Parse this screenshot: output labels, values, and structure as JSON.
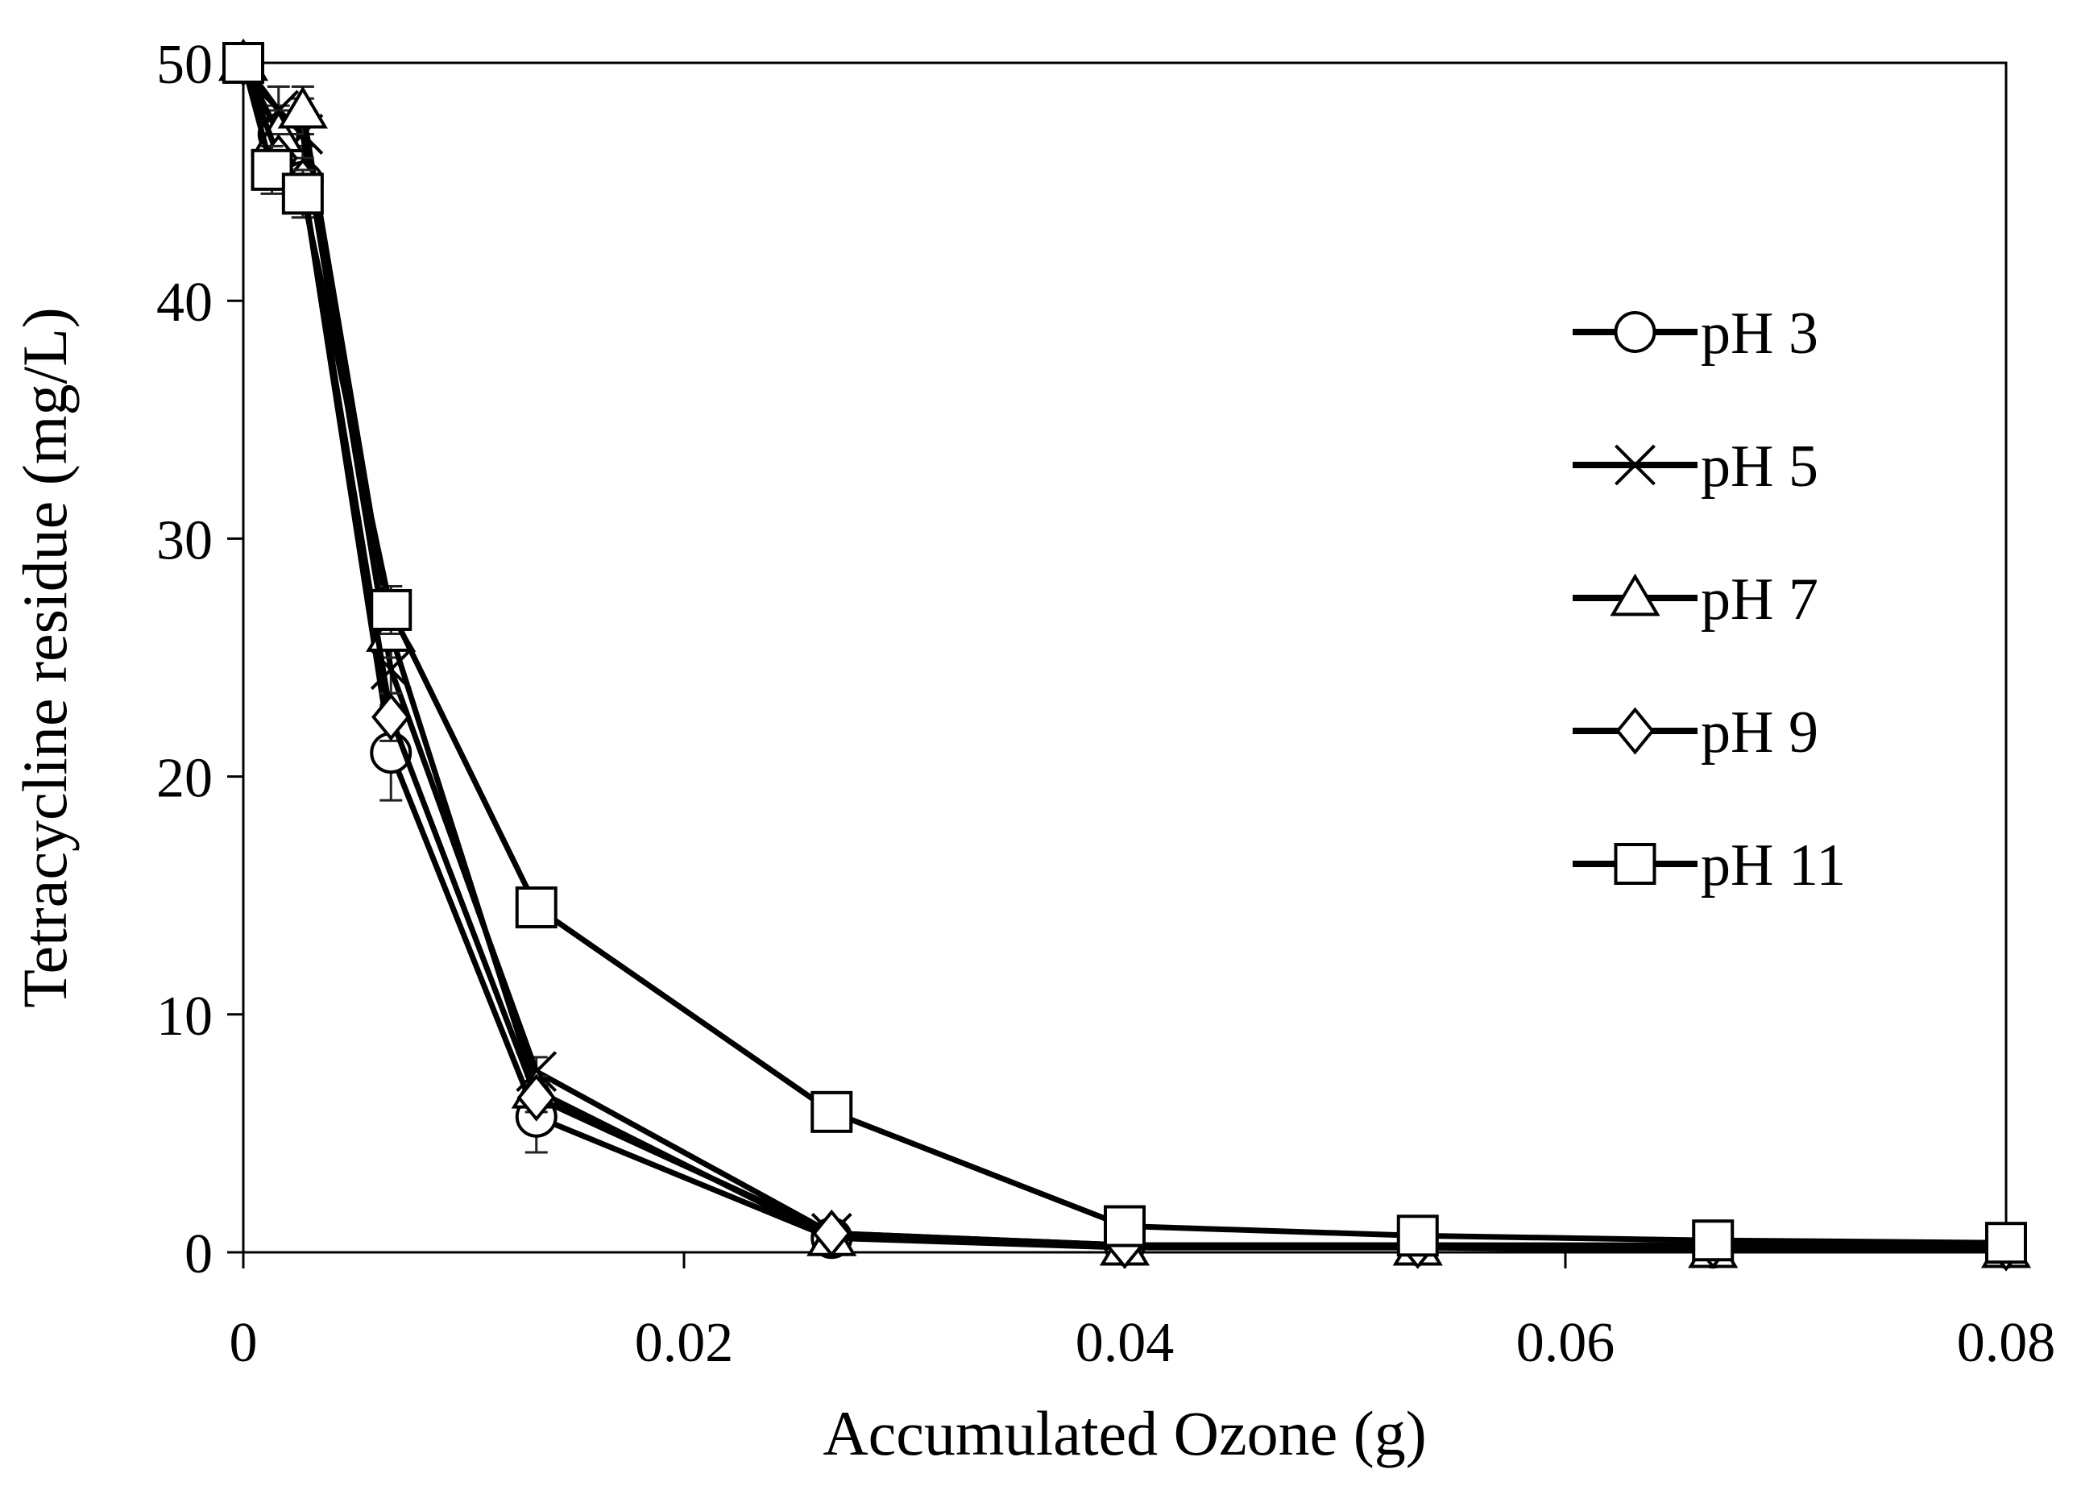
{
  "chart_data": {
    "type": "line",
    "title": "",
    "xlabel": "Accumulated Ozone (g)",
    "ylabel": "Tetracycline residue (mg/L)",
    "xlim": [
      0,
      0.08
    ],
    "ylim": [
      0,
      50
    ],
    "xticks": [
      0,
      0.02,
      0.04,
      0.06,
      0.08
    ],
    "xtick_labels": [
      "0",
      "0.02",
      "0.04",
      "0.06",
      "0.08"
    ],
    "yticks": [
      0,
      10,
      20,
      30,
      40,
      50
    ],
    "ytick_labels": [
      "0",
      "10",
      "20",
      "30",
      "40",
      "50"
    ],
    "grid": false,
    "legend_position": "right",
    "series": [
      {
        "name": "pH 3",
        "marker": "circle",
        "x": [
          0,
          0.0016,
          0.0027,
          0.0067,
          0.0133,
          0.0267,
          0.04,
          0.0533,
          0.0667,
          0.08
        ],
        "y": [
          50,
          47,
          45,
          21,
          5.7,
          0.6,
          0.3,
          0.3,
          0.2,
          0.2
        ],
        "err": [
          0.5,
          1.2,
          1.5,
          2.0,
          1.5,
          0.4,
          0.2,
          0.2,
          0.2,
          0.2
        ]
      },
      {
        "name": "pH 5",
        "marker": "x",
        "x": [
          0,
          0.0016,
          0.0027,
          0.0067,
          0.0133,
          0.0267,
          0.04,
          0.0533,
          0.0667,
          0.08
        ],
        "y": [
          50,
          48,
          47,
          24.5,
          7.6,
          0.8,
          0.3,
          0.3,
          0.2,
          0.2
        ],
        "err": [
          0.5,
          1.0,
          1.5,
          1.0,
          0.6,
          0.3,
          0.2,
          0.2,
          0.2,
          0.2
        ]
      },
      {
        "name": "pH 7",
        "marker": "triangle",
        "x": [
          0,
          0.0016,
          0.0027,
          0.0067,
          0.0133,
          0.0267,
          0.04,
          0.0533,
          0.0667,
          0.08
        ],
        "y": [
          50,
          47,
          48,
          26,
          6.8,
          0.6,
          0.2,
          0.2,
          0.1,
          0.1
        ],
        "err": [
          0.5,
          1.0,
          1.0,
          1.0,
          0.6,
          0.3,
          0.2,
          0.2,
          0.2,
          0.2
        ]
      },
      {
        "name": "pH 9",
        "marker": "diamond",
        "x": [
          0,
          0.0016,
          0.0027,
          0.0067,
          0.0133,
          0.0267,
          0.04,
          0.0533,
          0.0667,
          0.08
        ],
        "y": [
          50,
          46,
          45,
          22.5,
          6.5,
          0.8,
          0.3,
          0.3,
          0.3,
          0.2
        ],
        "err": [
          0.5,
          1.0,
          1.0,
          1.0,
          0.6,
          0.3,
          0.2,
          0.2,
          0.2,
          0.2
        ]
      },
      {
        "name": "pH 11",
        "marker": "square",
        "x": [
          0,
          0.0013,
          0.0027,
          0.0067,
          0.0133,
          0.0267,
          0.04,
          0.0533,
          0.0667,
          0.08
        ],
        "y": [
          50,
          45.5,
          44.5,
          27,
          14.5,
          5.9,
          1.1,
          0.7,
          0.5,
          0.4
        ],
        "err": [
          0.5,
          1.0,
          1.0,
          1.0,
          0.8,
          0.8,
          0.5,
          0.4,
          0.4,
          0.4
        ]
      }
    ]
  }
}
